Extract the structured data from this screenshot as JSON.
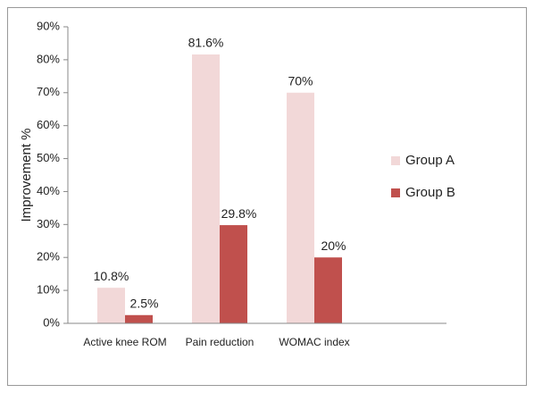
{
  "chart_data": {
    "type": "bar",
    "y_label": "Improvement %",
    "categories": [
      "Active knee ROM",
      "Pain reduction",
      "WOMAC index",
      null
    ],
    "series": [
      {
        "name": "Group A",
        "color": "#f2d8d8",
        "values": [
          10.8,
          81.6,
          70,
          null
        ],
        "value_labels": [
          "10.8%",
          "81.6%",
          "70%",
          null
        ]
      },
      {
        "name": "Group B",
        "color": "#c0504d",
        "values": [
          2.5,
          29.8,
          20,
          null
        ],
        "value_labels": [
          "2.5%",
          "29.8%",
          "20%",
          null
        ]
      }
    ],
    "ylim": [
      0,
      90
    ],
    "yticks": [
      {
        "value": 0,
        "label": "0%"
      },
      {
        "value": 10,
        "label": "10%"
      },
      {
        "value": 20,
        "label": "20%"
      },
      {
        "value": 30,
        "label": "30%"
      },
      {
        "value": 40,
        "label": "40%"
      },
      {
        "value": 50,
        "label": "50%"
      },
      {
        "value": 60,
        "label": "60%"
      },
      {
        "value": 70,
        "label": "70%"
      },
      {
        "value": 80,
        "label": "80%"
      },
      {
        "value": 90,
        "label": "90%"
      }
    ],
    "legend": "right"
  }
}
